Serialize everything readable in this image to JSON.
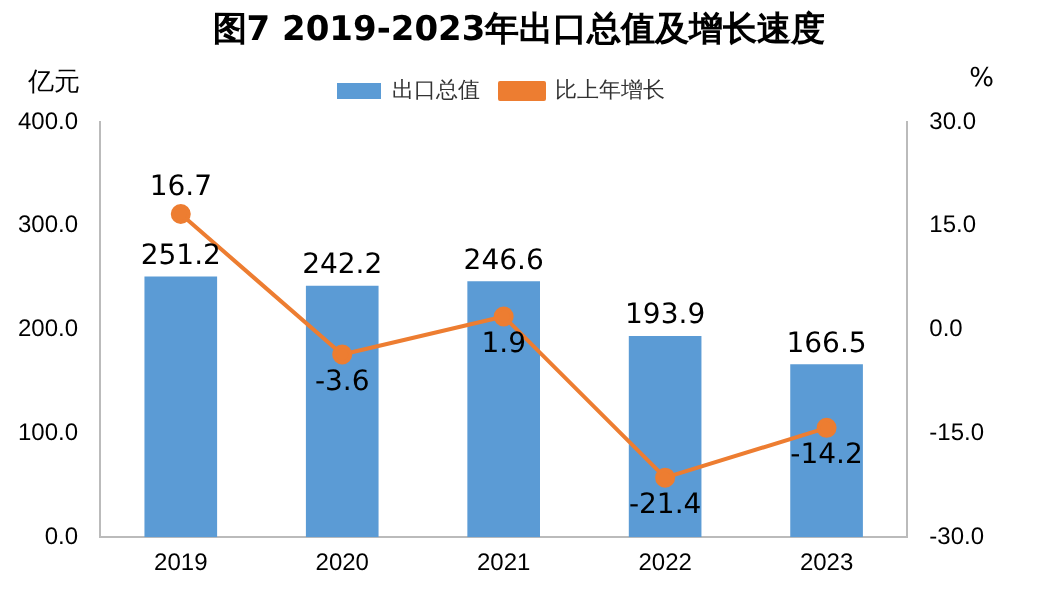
{
  "chart_data": {
    "type": "bar",
    "title": "图7  2019-2023年出口总值及增长速度",
    "ylabel": "亿元",
    "y2label": "%",
    "categories": [
      "2019",
      "2020",
      "2021",
      "2022",
      "2023"
    ],
    "series": [
      {
        "name": "出口总值",
        "color": "#5b9bd5",
        "values": [
          251.2,
          242.2,
          246.6,
          193.9,
          166.5
        ]
      },
      {
        "name": "比上年增长",
        "type": "line",
        "axis": "y2",
        "color": "#ed7d31",
        "values": [
          16.7,
          -3.6,
          1.9,
          -21.4,
          -14.2
        ]
      }
    ],
    "ylim": [
      0,
      400
    ],
    "yticks": [
      {
        "value": 0,
        "label": "0.0"
      },
      {
        "value": 100,
        "label": "100.0"
      },
      {
        "value": 200,
        "label": "200.0"
      },
      {
        "value": 300,
        "label": "300.0"
      },
      {
        "value": 400,
        "label": "400.0"
      }
    ],
    "y2lim": [
      -30,
      30
    ],
    "y2ticks": [
      {
        "value": -30,
        "label": "-30.0"
      },
      {
        "value": -15,
        "label": "-15.0"
      },
      {
        "value": 0,
        "label": "0.0"
      },
      {
        "value": 15,
        "label": "15.0"
      },
      {
        "value": 30,
        "label": "30.0"
      }
    ],
    "marker": "circle",
    "legend": "top",
    "grid": false,
    "data_labels": true
  }
}
